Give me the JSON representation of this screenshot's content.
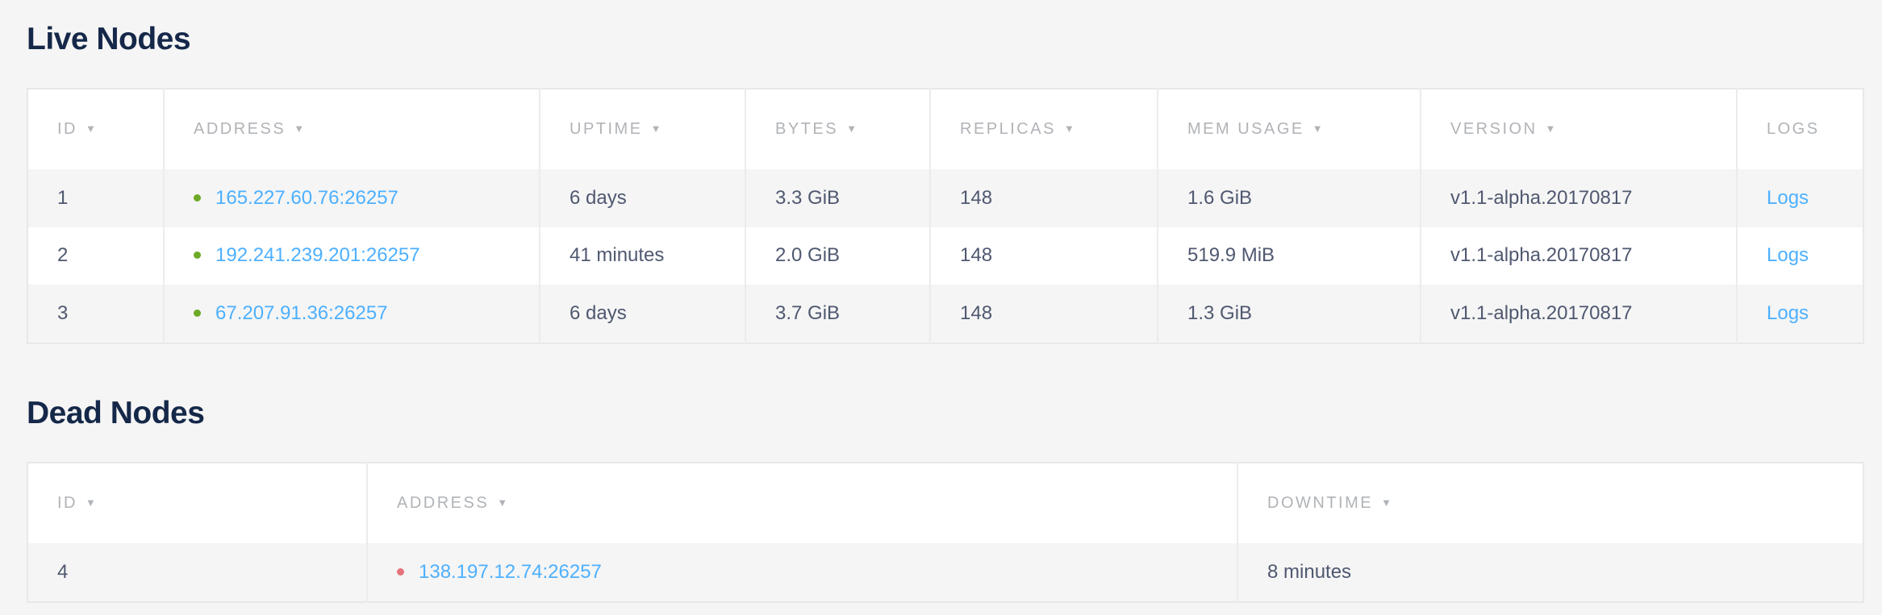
{
  "live": {
    "title": "Live Nodes",
    "headers": [
      "ID",
      "ADDRESS",
      "UPTIME",
      "BYTES",
      "REPLICAS",
      "MEM USAGE",
      "VERSION",
      "LOGS"
    ],
    "sort_arrow": "▼",
    "status_color": "#6ea927",
    "rows": [
      {
        "id": "1",
        "address": "165.227.60.76:26257",
        "uptime": "6 days",
        "bytes": "3.3 GiB",
        "replicas": "148",
        "mem": "1.6 GiB",
        "version": "v1.1-alpha.20170817",
        "logs": "Logs"
      },
      {
        "id": "2",
        "address": "192.241.239.201:26257",
        "uptime": "41 minutes",
        "bytes": "2.0 GiB",
        "replicas": "148",
        "mem": "519.9 MiB",
        "version": "v1.1-alpha.20170817",
        "logs": "Logs"
      },
      {
        "id": "3",
        "address": "67.207.91.36:26257",
        "uptime": "6 days",
        "bytes": "3.7 GiB",
        "replicas": "148",
        "mem": "1.3 GiB",
        "version": "v1.1-alpha.20170817",
        "logs": "Logs"
      }
    ]
  },
  "dead": {
    "title": "Dead Nodes",
    "headers": [
      "ID",
      "ADDRESS",
      "DOWNTIME"
    ],
    "status_color": "#e5737a",
    "rows": [
      {
        "id": "4",
        "address": "138.197.12.74:26257",
        "downtime": "8 minutes"
      }
    ]
  }
}
